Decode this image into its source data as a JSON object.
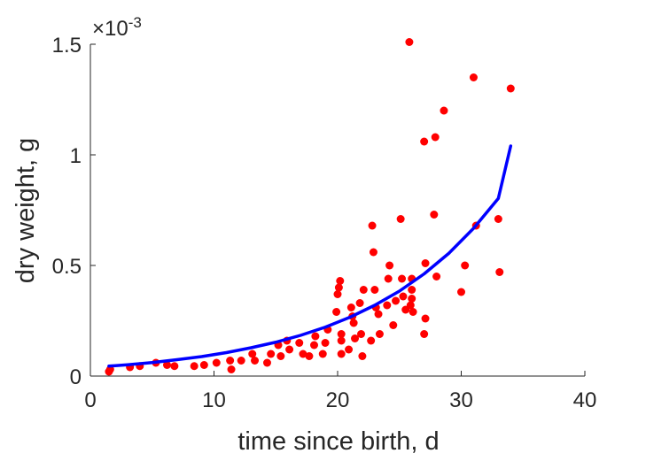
{
  "chart_data": {
    "type": "scatter",
    "title": "",
    "xlabel": "time since birth, d",
    "ylabel": "dry weight, g",
    "xlim": [
      0,
      40
    ],
    "ylim": [
      0,
      0.0015
    ],
    "xticks": [
      0,
      10,
      20,
      30,
      40
    ],
    "yticks": [
      0,
      0.0005,
      0.001,
      0.0015
    ],
    "xtick_labels": [
      "0",
      "10",
      "20",
      "30",
      "40"
    ],
    "ytick_labels": [
      "0",
      "0.5",
      "1",
      "1.5"
    ],
    "y_exponent_label": {
      "base": "×10",
      "exponent": "-3"
    },
    "grid": false,
    "legend": "none",
    "series": [
      {
        "type": "scatter",
        "color": "#ff0000",
        "points": [
          [
            1.5,
            2e-05
          ],
          [
            1.6,
            3e-05
          ],
          [
            3.2,
            4e-05
          ],
          [
            4,
            4.5e-05
          ],
          [
            5.3,
            6e-05
          ],
          [
            6.2,
            5e-05
          ],
          [
            6.8,
            4.5e-05
          ],
          [
            8.4,
            4.5e-05
          ],
          [
            9.2,
            5e-05
          ],
          [
            10.2,
            6e-05
          ],
          [
            11.3,
            7e-05
          ],
          [
            11.4,
            3e-05
          ],
          [
            12.2,
            7e-05
          ],
          [
            13.1,
            0.0001
          ],
          [
            13.3,
            7e-05
          ],
          [
            14.3,
            6e-05
          ],
          [
            14.6,
            0.0001
          ],
          [
            15.2,
            0.00014
          ],
          [
            15.4,
            9e-05
          ],
          [
            15.9,
            0.00016
          ],
          [
            16.1,
            0.00012
          ],
          [
            16.9,
            0.00015
          ],
          [
            17.2,
            0.0001
          ],
          [
            17.7,
            9e-05
          ],
          [
            18.1,
            0.00014
          ],
          [
            18.2,
            0.00018
          ],
          [
            18.8,
            0.0001
          ],
          [
            19,
            0.00015
          ],
          [
            19.2,
            0.00021
          ],
          [
            19.9,
            0.00029
          ],
          [
            20,
            0.00037
          ],
          [
            20.1,
            0.0004
          ],
          [
            20.2,
            0.00043
          ],
          [
            20.3,
            0.00016
          ],
          [
            20.3,
            0.00019
          ],
          [
            20.3,
            0.0001
          ],
          [
            20.9,
            0.00012
          ],
          [
            21.1,
            0.00031
          ],
          [
            21.2,
            0.00027
          ],
          [
            21.3,
            0.00024
          ],
          [
            21.4,
            0.00017
          ],
          [
            21.8,
            0.00033
          ],
          [
            21.9,
            0.00019
          ],
          [
            22,
            9e-05
          ],
          [
            22.1,
            0.00039
          ],
          [
            22.7,
            0.00016
          ],
          [
            22.8,
            0.00068
          ],
          [
            22.9,
            0.00056
          ],
          [
            23,
            0.00039
          ],
          [
            23.1,
            0.00031
          ],
          [
            23.3,
            0.00028
          ],
          [
            23.4,
            0.00019
          ],
          [
            24,
            0.00032
          ],
          [
            24.1,
            0.00044
          ],
          [
            24.2,
            0.0005
          ],
          [
            24.5,
            0.00023
          ],
          [
            24.7,
            0.00034
          ],
          [
            25.1,
            0.00071
          ],
          [
            25.2,
            0.00044
          ],
          [
            25.3,
            0.00036
          ],
          [
            25.5,
            0.0003
          ],
          [
            25.8,
            0.00151
          ],
          [
            25.9,
            0.00032
          ],
          [
            26,
            0.00035
          ],
          [
            26,
            0.00039
          ],
          [
            26,
            0.00044
          ],
          [
            26.1,
            0.00029
          ],
          [
            27,
            0.00106
          ],
          [
            27.1,
            0.00051
          ],
          [
            27.1,
            0.00026
          ],
          [
            27,
            0.00019
          ],
          [
            27.8,
            0.00073
          ],
          [
            27.9,
            0.00108
          ],
          [
            28,
            0.00045
          ],
          [
            28.6,
            0.0012
          ],
          [
            30,
            0.00038
          ],
          [
            30.3,
            0.0005
          ],
          [
            31,
            0.00135
          ],
          [
            31.2,
            0.00068
          ],
          [
            33,
            0.00071
          ],
          [
            33.1,
            0.00047
          ],
          [
            34,
            0.0013
          ]
        ]
      },
      {
        "type": "line",
        "color": "#0000ff",
        "x": [
          1.5,
          3,
          5,
          7,
          9,
          11,
          13,
          15,
          17,
          19,
          21,
          23,
          25,
          27,
          29,
          31,
          33,
          34
        ],
        "y": [
          4.5e-05,
          5.1e-05,
          6.1e-05,
          7.4e-05,
          8.8e-05,
          0.000106,
          0.000128,
          0.000153,
          0.000184,
          0.000221,
          0.000266,
          0.00032,
          0.000384,
          0.000462,
          0.000555,
          0.000668,
          0.000803,
          0.00104
        ]
      }
    ]
  }
}
